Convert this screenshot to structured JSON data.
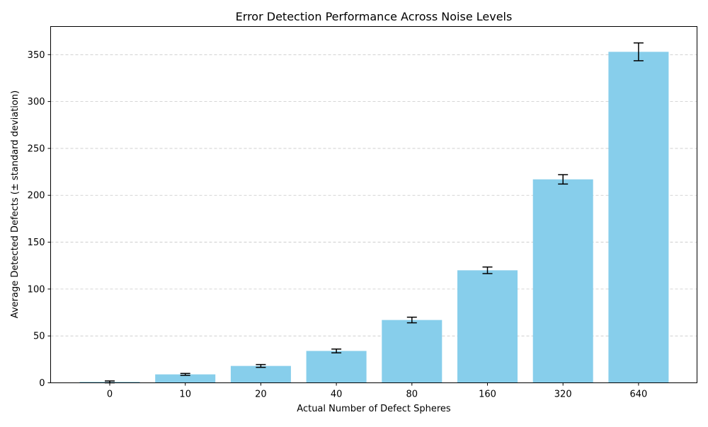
{
  "chart_data": {
    "type": "bar",
    "title": "Error Detection Performance Across Noise Levels",
    "xlabel": "Actual Number of Defect Spheres",
    "ylabel": "Average Detected Defects (± standard deviation)",
    "categories": [
      "0",
      "10",
      "20",
      "40",
      "80",
      "160",
      "320",
      "640"
    ],
    "values": [
      1,
      9,
      18,
      34,
      67,
      120,
      217,
      353
    ],
    "errors": [
      1,
      1,
      1.5,
      2,
      3,
      3.5,
      5,
      9.5
    ],
    "ylim": [
      0,
      380
    ],
    "yticks": [
      0,
      50,
      100,
      150,
      200,
      250,
      300,
      350
    ],
    "grid": "y-dashed",
    "colors": {
      "bar": "#87ceeb",
      "errorbar": "#000000",
      "grid": "#c8c8c8",
      "axis": "#000000"
    }
  }
}
